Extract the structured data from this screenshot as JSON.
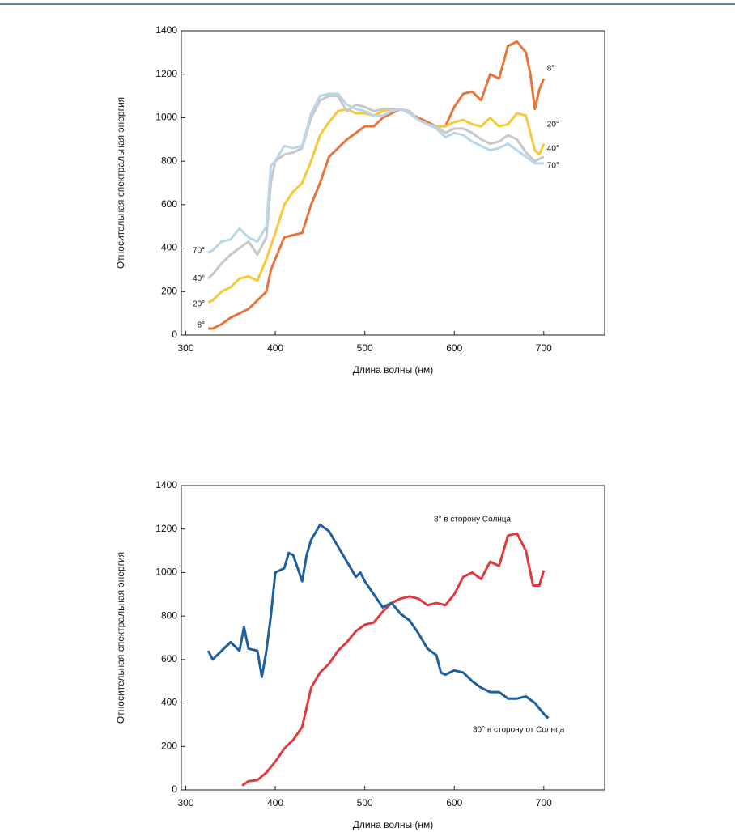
{
  "chart_data": [
    {
      "type": "line",
      "xlabel": "Длина волны (нм)",
      "ylabel": "Относительная спектральная энергия",
      "xlim": [
        295,
        768
      ],
      "ylim": [
        0,
        1400
      ],
      "xticks": [
        300,
        400,
        500,
        600,
        700
      ],
      "yticks": [
        0,
        200,
        400,
        600,
        800,
        1000,
        1200,
        1400
      ],
      "series": [
        {
          "name": "8°",
          "color": "#e8743b",
          "x": [
            325,
            330,
            340,
            350,
            360,
            370,
            380,
            390,
            395,
            400,
            405,
            410,
            420,
            430,
            440,
            450,
            460,
            470,
            480,
            490,
            500,
            510,
            520,
            530,
            540,
            550,
            560,
            570,
            580,
            590,
            600,
            610,
            620,
            630,
            640,
            650,
            660,
            670,
            680,
            685,
            690,
            695,
            700
          ],
          "values": [
            30,
            30,
            50,
            80,
            100,
            120,
            160,
            200,
            300,
            350,
            400,
            450,
            460,
            470,
            600,
            700,
            820,
            860,
            900,
            930,
            960,
            960,
            1000,
            1020,
            1040,
            1020,
            1000,
            980,
            960,
            960,
            1050,
            1110,
            1120,
            1080,
            1200,
            1180,
            1330,
            1350,
            1300,
            1200,
            1040,
            1130,
            1180
          ]
        },
        {
          "name": "20°",
          "color": "#f5c93a",
          "x": [
            325,
            330,
            340,
            350,
            360,
            370,
            380,
            390,
            400,
            410,
            420,
            430,
            440,
            450,
            460,
            470,
            480,
            490,
            500,
            510,
            520,
            530,
            540,
            550,
            560,
            570,
            580,
            590,
            600,
            610,
            620,
            630,
            640,
            650,
            660,
            670,
            680,
            690,
            695,
            700
          ],
          "values": [
            150,
            160,
            200,
            220,
            260,
            270,
            250,
            350,
            470,
            600,
            660,
            700,
            800,
            920,
            980,
            1030,
            1040,
            1020,
            1020,
            1010,
            1030,
            1040,
            1040,
            1020,
            990,
            970,
            960,
            960,
            980,
            990,
            970,
            960,
            1000,
            960,
            970,
            1020,
            1010,
            850,
            830,
            880
          ]
        },
        {
          "name": "40°",
          "color": "#c8c8c8",
          "x": [
            325,
            330,
            340,
            350,
            360,
            370,
            380,
            390,
            395,
            400,
            410,
            420,
            430,
            440,
            450,
            460,
            470,
            480,
            490,
            500,
            510,
            520,
            530,
            540,
            550,
            560,
            570,
            580,
            590,
            600,
            610,
            620,
            630,
            640,
            650,
            660,
            670,
            680,
            690,
            700
          ],
          "values": [
            260,
            280,
            330,
            370,
            400,
            430,
            370,
            450,
            700,
            800,
            830,
            840,
            860,
            1000,
            1080,
            1100,
            1100,
            1030,
            1060,
            1050,
            1030,
            1040,
            1040,
            1040,
            1030,
            990,
            970,
            960,
            930,
            950,
            950,
            930,
            900,
            880,
            890,
            920,
            900,
            840,
            800,
            820
          ]
        },
        {
          "name": "70°",
          "color": "#b9d7ea",
          "x": [
            325,
            330,
            340,
            350,
            360,
            370,
            380,
            390,
            395,
            400,
            410,
            420,
            430,
            440,
            450,
            460,
            470,
            480,
            490,
            500,
            510,
            520,
            530,
            540,
            550,
            560,
            570,
            580,
            590,
            600,
            610,
            620,
            630,
            640,
            650,
            660,
            670,
            680,
            690,
            700
          ],
          "values": [
            380,
            390,
            430,
            440,
            490,
            450,
            430,
            500,
            780,
            800,
            870,
            860,
            870,
            1020,
            1100,
            1110,
            1110,
            1060,
            1040,
            1030,
            1010,
            1010,
            1030,
            1040,
            1020,
            990,
            970,
            950,
            910,
            930,
            920,
            890,
            870,
            850,
            860,
            880,
            850,
            820,
            790,
            790
          ]
        }
      ]
    },
    {
      "type": "line",
      "xlabel": "Длина волны (нм)",
      "ylabel": "Относительная спектральная энергия",
      "xlim": [
        295,
        768
      ],
      "ylim": [
        0,
        1400
      ],
      "xticks": [
        300,
        400,
        500,
        600,
        700
      ],
      "yticks": [
        0,
        200,
        400,
        600,
        800,
        1000,
        1200,
        1400
      ],
      "series": [
        {
          "name": "8° в сторону Солнца",
          "color": "#e03a3e",
          "x": [
            363,
            370,
            380,
            390,
            400,
            410,
            420,
            430,
            440,
            450,
            460,
            470,
            480,
            490,
            500,
            510,
            520,
            530,
            540,
            550,
            560,
            570,
            580,
            590,
            600,
            610,
            620,
            630,
            640,
            650,
            660,
            670,
            680,
            688,
            695,
            700
          ],
          "values": [
            20,
            40,
            45,
            80,
            130,
            190,
            230,
            290,
            470,
            540,
            580,
            640,
            680,
            730,
            760,
            770,
            820,
            860,
            880,
            890,
            880,
            850,
            860,
            850,
            900,
            980,
            1000,
            970,
            1050,
            1030,
            1170,
            1180,
            1100,
            940,
            940,
            1010
          ]
        },
        {
          "name": "30° в сторону от Солнца",
          "color": "#1e5fa0",
          "x": [
            325,
            330,
            340,
            350,
            360,
            365,
            370,
            380,
            385,
            390,
            395,
            400,
            410,
            415,
            420,
            430,
            435,
            440,
            450,
            460,
            470,
            480,
            490,
            495,
            500,
            510,
            520,
            530,
            540,
            550,
            560,
            570,
            580,
            585,
            590,
            600,
            610,
            620,
            630,
            640,
            650,
            660,
            670,
            680,
            690,
            700,
            705
          ],
          "values": [
            640,
            600,
            640,
            680,
            640,
            750,
            650,
            640,
            520,
            640,
            800,
            1000,
            1020,
            1090,
            1080,
            960,
            1080,
            1150,
            1220,
            1190,
            1120,
            1050,
            980,
            1000,
            960,
            900,
            840,
            860,
            810,
            780,
            720,
            650,
            620,
            540,
            530,
            550,
            540,
            500,
            470,
            450,
            450,
            420,
            420,
            430,
            400,
            350,
            330
          ]
        }
      ]
    }
  ]
}
